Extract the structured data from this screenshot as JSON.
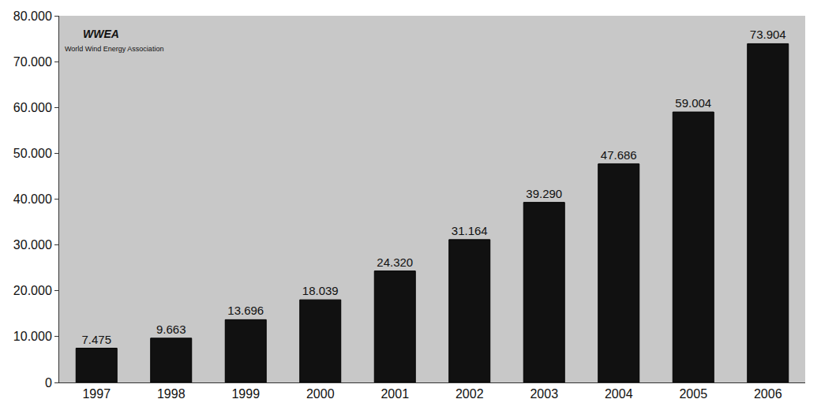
{
  "chart_data": {
    "type": "bar",
    "categories": [
      "1997",
      "1998",
      "1999",
      "2000",
      "2001",
      "2002",
      "2003",
      "2004",
      "2005",
      "2006"
    ],
    "values": [
      7475,
      9663,
      13696,
      18039,
      24320,
      31164,
      39290,
      47686,
      59004,
      73904
    ],
    "value_labels": [
      "7.475",
      "9.663",
      "13.696",
      "18.039",
      "24.320",
      "31.164",
      "39.290",
      "47.686",
      "59.004",
      "73.904"
    ],
    "data_labels": true,
    "color": "#111111",
    "ylim": [
      0,
      80000
    ],
    "yticks": [
      0,
      {
        "value": 10000,
        "label": "10.000"
      },
      {
        "value": 20000,
        "label": "20.000"
      },
      {
        "value": 30000,
        "label": "30.000"
      },
      {
        "value": 40000,
        "label": "40.000"
      },
      {
        "value": 50000,
        "label": "50.000"
      },
      {
        "value": 60000,
        "label": "60.000"
      },
      {
        "value": 70000,
        "label": "70.000"
      },
      {
        "value": 80000,
        "label": "80.000"
      }
    ],
    "grid": false,
    "annotations": [
      "WWEA",
      "World Wind Energy Association"
    ]
  }
}
